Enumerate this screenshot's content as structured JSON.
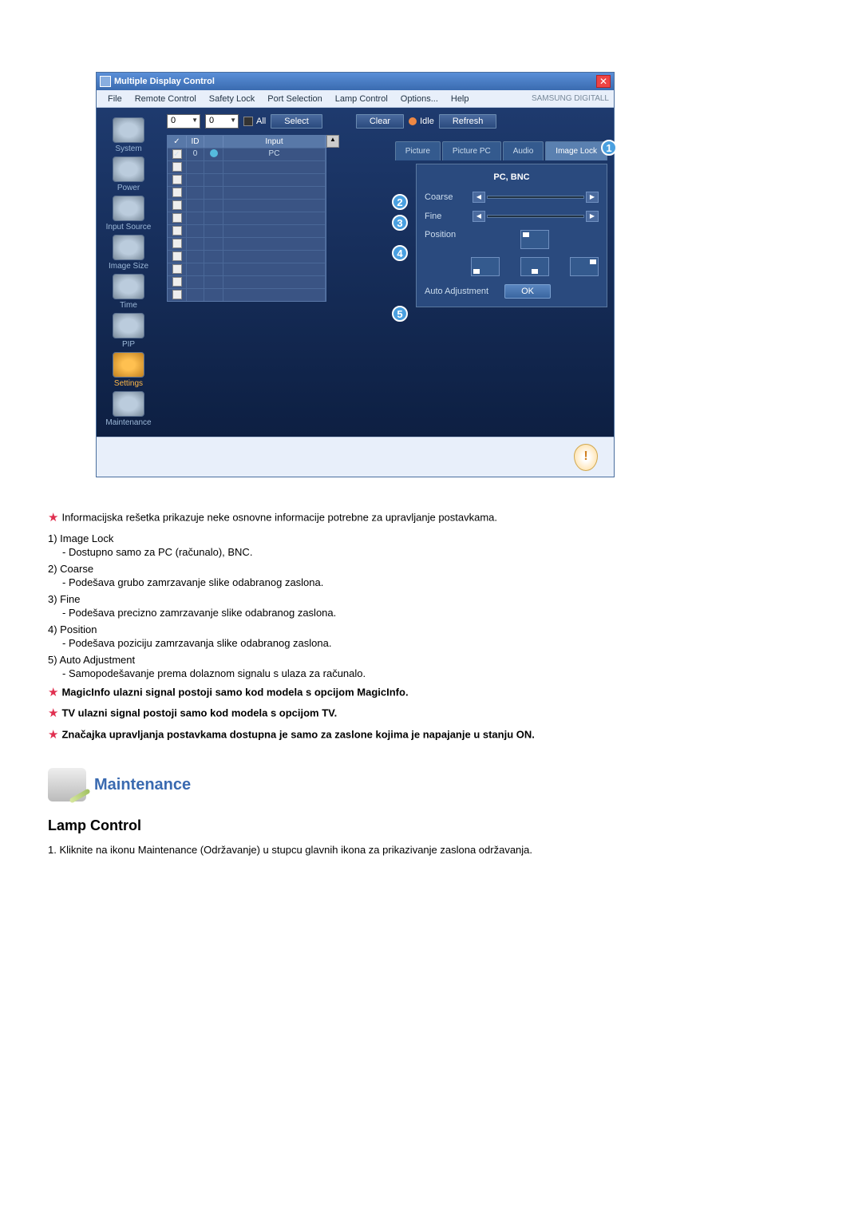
{
  "window": {
    "title": "Multiple Display Control",
    "menubar": [
      "File",
      "Remote Control",
      "Safety Lock",
      "Port Selection",
      "Lamp Control",
      "Options...",
      "Help"
    ],
    "brand": "SAMSUNG DIGITALL"
  },
  "sidebar": [
    {
      "label": "System",
      "selected": false
    },
    {
      "label": "Power",
      "selected": false
    },
    {
      "label": "Input Source",
      "selected": false
    },
    {
      "label": "Image Size",
      "selected": false
    },
    {
      "label": "Time",
      "selected": false
    },
    {
      "label": "PIP",
      "selected": false
    },
    {
      "label": "Settings",
      "selected": true
    },
    {
      "label": "Maintenance",
      "selected": false
    }
  ],
  "toolbar": {
    "dd1": "0",
    "dd2": "0",
    "all_label": "All",
    "select": "Select",
    "clear": "Clear",
    "idle": "Idle",
    "refresh": "Refresh"
  },
  "grid": {
    "headers": {
      "c1": "✓",
      "c2": "ID",
      "c3": "",
      "c4": "Input"
    },
    "rows": [
      {
        "checked": true,
        "id": "0",
        "input": "PC"
      }
    ],
    "blank_rows": 11
  },
  "tabs": [
    "Picture",
    "Picture PC",
    "Audio",
    "Image Lock"
  ],
  "tabs_active": 3,
  "panel": {
    "title": "PC, BNC",
    "coarse": "Coarse",
    "fine": "Fine",
    "position": "Position",
    "auto": "Auto Adjustment",
    "ok": "OK"
  },
  "callouts": {
    "n1": "1",
    "n2": "2",
    "n3": "3",
    "n4": "4",
    "n5": "5"
  },
  "doc": {
    "intro": "Informacijska rešetka prikazuje neke osnovne informacije potrebne za upravljanje postavkama.",
    "items": [
      {
        "n": "1)",
        "t": "Image Lock",
        "s": "- Dostupno samo za PC (računalo), BNC."
      },
      {
        "n": "2)",
        "t": "Coarse",
        "s": "- Podešava grubo zamrzavanje slike odabranog zaslona."
      },
      {
        "n": "3)",
        "t": "Fine",
        "s": "- Podešava precizno zamrzavanje slike odabranog zaslona."
      },
      {
        "n": "4)",
        "t": "Position",
        "s": "- Podešava poziciju zamrzavanja slike odabranog zaslona."
      },
      {
        "n": "5)",
        "t": "Auto Adjustment",
        "s": "- Samopodešavanje prema dolaznom signalu s ulaza za računalo."
      }
    ],
    "bold_notes": [
      "MagicInfo ulazni signal postoji samo kod modela s opcijom MagicInfo.",
      "TV ulazni signal postoji samo kod modela s opcijom TV.",
      "Značajka upravljanja postavkama dostupna je samo za zaslone kojima je napajanje u stanju ON."
    ],
    "section_title": "Maintenance",
    "subsection": "Lamp Control",
    "sub_item": "1.  Kliknite na ikonu Maintenance (Održavanje) u stupcu glavnih ikona za prikazivanje zaslona održavanja."
  },
  "colors": {
    "accent": "#3a6ab0",
    "star": "#e03050",
    "win_dark": "#1e3a6e"
  }
}
